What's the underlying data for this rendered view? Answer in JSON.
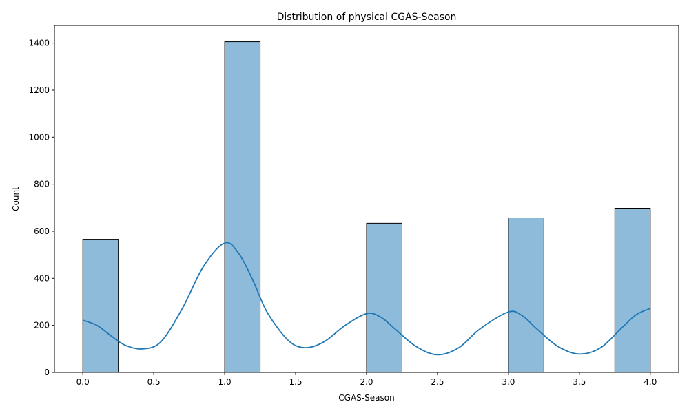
{
  "chart_data": {
    "type": "bar",
    "title": "Distribution of physical CGAS-Season",
    "xlabel": "CGAS-Season",
    "ylabel": "Count",
    "xlim": [
      -0.2,
      4.2
    ],
    "ylim": [
      0,
      1475
    ],
    "x_ticks": [
      "0.0",
      "0.5",
      "1.0",
      "1.5",
      "2.0",
      "2.5",
      "3.0",
      "3.5",
      "4.0"
    ],
    "y_ticks": [
      "0",
      "200",
      "400",
      "600",
      "800",
      "1000",
      "1200",
      "1400"
    ],
    "bins": [
      {
        "start": 0.0,
        "end": 0.25,
        "count": 566
      },
      {
        "start": 1.0,
        "end": 1.25,
        "count": 1406
      },
      {
        "start": 2.0,
        "end": 2.25,
        "count": 634
      },
      {
        "start": 3.0,
        "end": 3.25,
        "count": 657
      },
      {
        "start": 3.75,
        "end": 4.0,
        "count": 698
      }
    ],
    "kde": {
      "x": [
        0.0,
        0.1,
        0.2,
        0.3,
        0.42,
        0.55,
        0.7,
        0.85,
        1.0,
        1.1,
        1.2,
        1.3,
        1.45,
        1.57,
        1.7,
        1.85,
        2.0,
        2.1,
        2.2,
        2.35,
        2.5,
        2.65,
        2.8,
        3.0,
        3.1,
        3.2,
        3.35,
        3.5,
        3.65,
        3.8,
        3.9,
        4.0
      ],
      "y": [
        222,
        200,
        155,
        115,
        100,
        130,
        270,
        450,
        550,
        505,
        390,
        255,
        135,
        105,
        130,
        200,
        250,
        235,
        185,
        110,
        75,
        105,
        185,
        257,
        240,
        185,
        110,
        78,
        105,
        190,
        245,
        272
      ]
    },
    "bar_color": "#8fbbdb",
    "bar_edge_color": "#000000",
    "kde_color": "#1f77b4",
    "grid": false,
    "legend": "none"
  }
}
